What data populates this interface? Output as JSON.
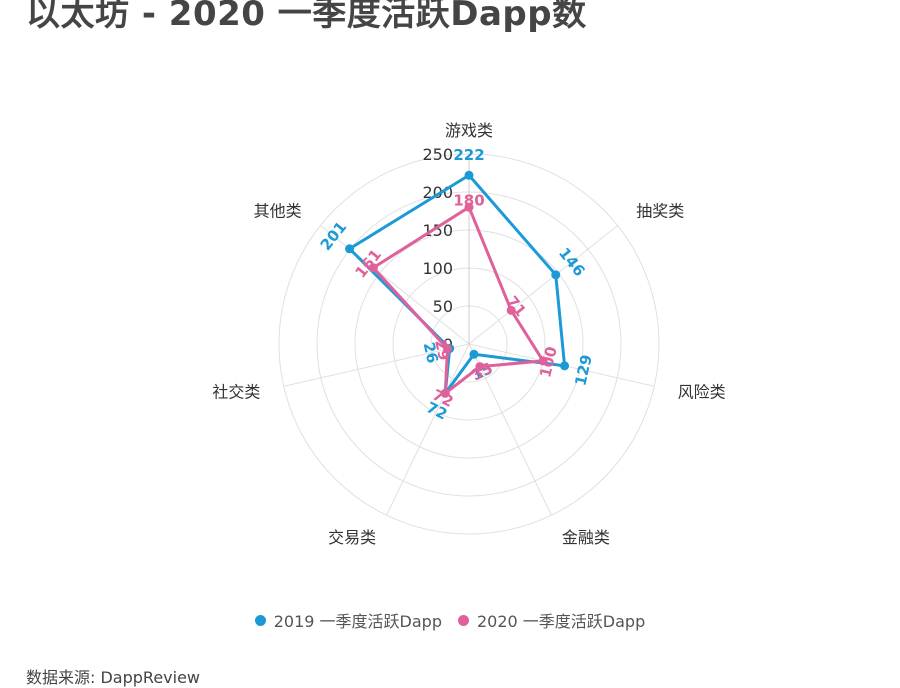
{
  "title": "以太坊 - 2020 一季度活跃Dapp数",
  "source": "数据来源: DappReview",
  "colors": {
    "series_2019": "#1b9ad6",
    "series_2020": "#e0609a",
    "grid": "#e0e0e0",
    "axis_line": "#cccccc"
  },
  "chart_data": {
    "type": "radar",
    "title": "以太坊 - 2020 一季度活跃Dapp数",
    "categories": [
      "游戏类",
      "抽奖类",
      "风险类",
      "金融类",
      "交易类",
      "社交类",
      "其他类"
    ],
    "radial_axis": {
      "range": [
        0,
        250
      ],
      "ticks": [
        0,
        50,
        100,
        150,
        200,
        250
      ]
    },
    "grid": true,
    "legend_position": "bottom",
    "series": [
      {
        "name": "2019 一季度活跃Dapp",
        "values": [
          222,
          146,
          129,
          15,
          72,
          26,
          201
        ]
      },
      {
        "name": "2020 一季度活跃Dapp",
        "values": [
          180,
          71,
          100,
          33,
          72,
          29,
          161
        ]
      }
    ]
  }
}
